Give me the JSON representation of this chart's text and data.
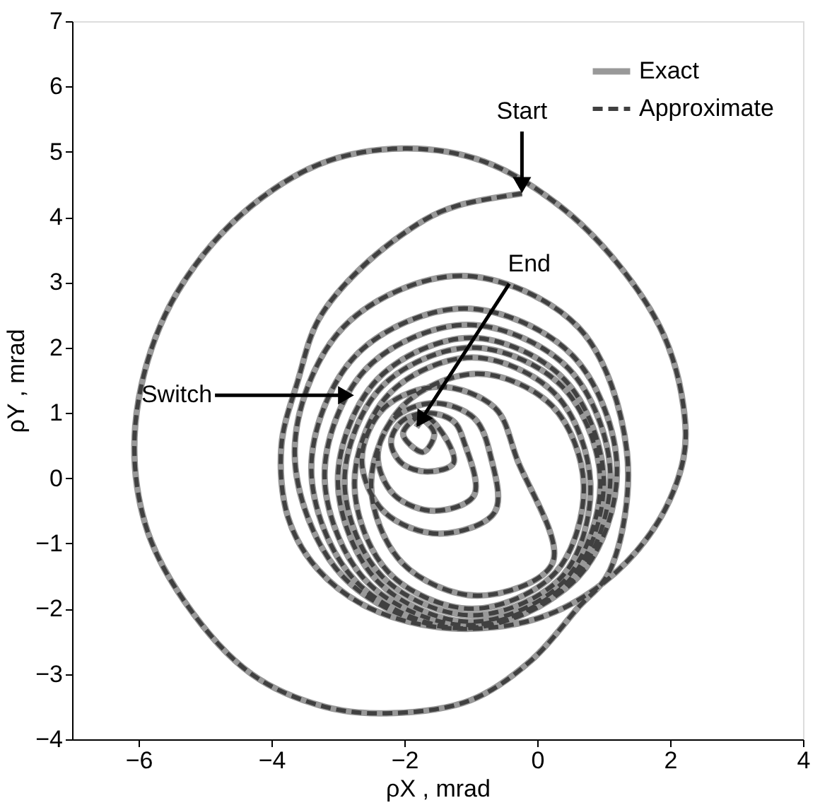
{
  "chart_data": {
    "type": "line",
    "xlabel": "ρX , mrad",
    "ylabel": "ρY , mrad",
    "xlim": [
      -7,
      4
    ],
    "ylim": [
      -4,
      7
    ],
    "xticks": [
      -6,
      -4,
      -2,
      0,
      2,
      4
    ],
    "yticks": [
      -4,
      -3,
      -2,
      -1,
      0,
      1,
      2,
      3,
      4,
      5,
      6,
      7
    ],
    "grid": false,
    "legend": "top right",
    "marker": "none",
    "x": [
      -0.23,
      -1.18,
      -1.69,
      -2.64,
      -3.29,
      -3.6,
      -3.85,
      -3.75,
      -3.3,
      -2.5,
      -1.3,
      0.0,
      1.0,
      1.8,
      2.2,
      2.2,
      1.9,
      1.2,
      0.3,
      -0.8,
      -2.0,
      -3.3,
      -4.6,
      -5.6,
      -6.05,
      -5.9,
      -5.3,
      -4.3,
      -3.2,
      -2.2,
      -1.0,
      -0.1,
      0.6,
      1.1,
      1.35,
      0.62,
      -1.15,
      -2.92,
      -3.65,
      -2.92,
      -1.15,
      0.62,
      1.2,
      0.53,
      -1.1,
      -2.73,
      -3.4,
      -2.73,
      -1.1,
      0.53,
      1.1,
      0.47,
      -1.05,
      -2.57,
      -3.2,
      -2.57,
      -1.05,
      0.47,
      1.0,
      0.41,
      -1.0,
      -2.41,
      -3.0,
      -2.41,
      -1.0,
      0.41,
      0.95,
      0.38,
      -0.98,
      -2.34,
      -2.9,
      -2.34,
      -0.98,
      0.38,
      0.8,
      0.28,
      -0.98,
      -2.24,
      -2.75,
      -2.24,
      -0.98,
      0.28,
      0.7,
      0.23,
      -0.9,
      -2.03,
      -2.5,
      -2.03,
      -0.9,
      0.23,
      -0.3,
      -0.64,
      -1.47,
      -2.3,
      -2.64,
      -2.3,
      -1.47,
      -0.64,
      -0.7,
      -0.95,
      -1.55,
      -2.15,
      -2.4,
      -2.15,
      -1.55,
      -0.95,
      -1.1,
      -1.26,
      -1.65,
      -2.04,
      -2.2,
      -2.04,
      -1.65,
      -1.26,
      -1.42,
      -1.72,
      -2.02,
      -1.72,
      -1.55,
      -1.72,
      -1.82
    ],
    "series": [
      {
        "name": "Exact",
        "color": "#999999",
        "line_style": "solid",
        "values": [
          4.36,
          4.18,
          3.96,
          3.23,
          2.43,
          1.5,
          0.5,
          -0.6,
          -1.4,
          -2.0,
          -2.3,
          -2.15,
          -1.6,
          -0.7,
          0.3,
          1.1,
          2.2,
          3.3,
          4.2,
          4.85,
          5.05,
          4.8,
          3.9,
          2.5,
          0.8,
          -0.7,
          -1.9,
          -3.0,
          -3.5,
          -3.6,
          -3.4,
          -2.8,
          -2.0,
          -1.4,
          0.4,
          2.31,
          3.1,
          2.31,
          0.4,
          -1.51,
          -2.3,
          -1.51,
          0.15,
          1.88,
          2.6,
          1.88,
          0.15,
          -1.58,
          -2.3,
          -1.58,
          0.05,
          1.68,
          2.35,
          1.68,
          0.05,
          -1.58,
          -2.25,
          -1.58,
          -0.03,
          1.51,
          2.15,
          1.51,
          -0.03,
          -1.57,
          -2.2,
          -1.57,
          -0.05,
          1.4,
          2.0,
          1.4,
          -0.05,
          -1.5,
          -2.1,
          -1.5,
          -0.08,
          1.28,
          1.85,
          1.28,
          -0.08,
          -1.44,
          -2.0,
          -1.44,
          -0.1,
          1.1,
          1.6,
          1.1,
          -0.1,
          -1.3,
          -1.8,
          -1.3,
          0.28,
          1.08,
          1.4,
          1.08,
          0.28,
          -0.52,
          -0.85,
          -0.52,
          0.33,
          0.92,
          1.15,
          0.92,
          0.33,
          -0.26,
          -0.5,
          -0.26,
          0.55,
          0.87,
          1.0,
          0.87,
          0.55,
          0.23,
          0.1,
          0.23,
          0.68,
          0.96,
          0.68,
          0.4,
          0.68,
          0.88,
          0.78
        ]
      },
      {
        "name": "Approximate",
        "color": "#404040",
        "line_style": "dashed",
        "values": [
          4.36,
          4.18,
          3.96,
          3.23,
          2.43,
          1.5,
          0.5,
          -0.6,
          -1.4,
          -2.0,
          -2.3,
          -2.15,
          -1.6,
          -0.7,
          0.3,
          1.1,
          2.2,
          3.3,
          4.2,
          4.85,
          5.05,
          4.8,
          3.9,
          2.5,
          0.8,
          -0.7,
          -1.9,
          -3.0,
          -3.5,
          -3.6,
          -3.4,
          -2.8,
          -2.0,
          -1.4,
          0.4,
          2.31,
          3.1,
          2.31,
          0.4,
          -1.51,
          -2.3,
          -1.51,
          0.15,
          1.88,
          2.6,
          1.88,
          0.15,
          -1.58,
          -2.3,
          -1.58,
          0.05,
          1.68,
          2.35,
          1.68,
          0.05,
          -1.58,
          -2.25,
          -1.58,
          -0.03,
          1.51,
          2.15,
          1.51,
          -0.03,
          -1.57,
          -2.2,
          -1.57,
          -0.05,
          1.4,
          2.0,
          1.4,
          -0.05,
          -1.5,
          -2.1,
          -1.5,
          -0.08,
          1.28,
          1.85,
          1.28,
          -0.08,
          -1.44,
          -2.0,
          -1.44,
          -0.1,
          1.1,
          1.6,
          1.1,
          -0.1,
          -1.3,
          -1.8,
          -1.3,
          0.28,
          1.08,
          1.4,
          1.08,
          0.28,
          -0.52,
          -0.85,
          -0.52,
          0.33,
          0.92,
          1.15,
          0.92,
          0.33,
          -0.26,
          -0.5,
          -0.26,
          0.55,
          0.87,
          1.0,
          0.87,
          0.55,
          0.23,
          0.1,
          0.23,
          0.68,
          0.96,
          0.68,
          0.4,
          0.68,
          0.88,
          0.78
        ]
      }
    ],
    "annotations": [
      {
        "text": "Start",
        "x": -0.23,
        "y": 4.36
      },
      {
        "text": "End",
        "x": -1.82,
        "y": 0.78
      },
      {
        "text": "Switch",
        "x": -2.75,
        "y": 1.27
      }
    ]
  }
}
